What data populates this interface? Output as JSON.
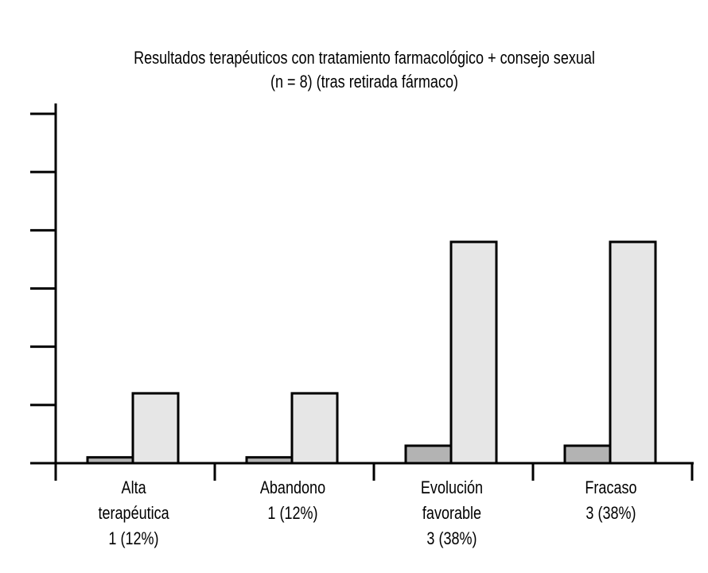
{
  "chart_data": {
    "type": "bar",
    "title": [
      "Resultados terapéuticos con tratamiento farmacológico + consejo sexual",
      "(n = 8) (tras retirada fármaco)"
    ],
    "categories": [
      [
        "Alta",
        "terapéutica",
        "1 (12%)"
      ],
      [
        "Abandono",
        "1 (12%)"
      ],
      [
        "Evolución",
        "favorable",
        "3 (38%)"
      ],
      [
        "Fracaso",
        "3 (38%)"
      ]
    ],
    "series": [
      {
        "values": [
          1,
          1,
          3,
          3
        ],
        "color": "#b3b3b3"
      },
      {
        "values": [
          12,
          12,
          38,
          38
        ],
        "color": "#e6e6e6"
      }
    ],
    "ylim": [
      0,
      60
    ],
    "y_ticks": [
      0,
      10,
      20,
      30,
      40,
      50,
      60
    ],
    "tick_labels_shown": false,
    "grid": false,
    "legend": "none"
  }
}
